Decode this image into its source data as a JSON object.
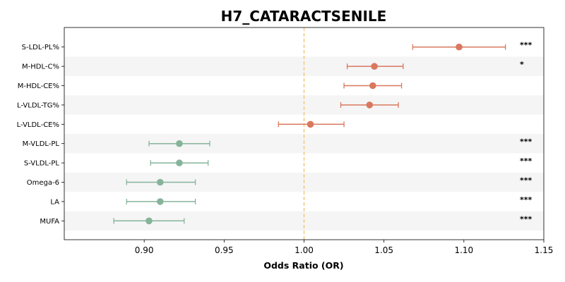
{
  "chart_data": {
    "type": "forest",
    "title": "H7_CATARACTSENILE",
    "xlabel": "Odds Ratio (OR)",
    "ylabel": "",
    "xlim": [
      0.85,
      1.15
    ],
    "xticks": [
      "0.90",
      "0.95",
      "1.00",
      "1.05",
      "1.10",
      "1.15"
    ],
    "reference_line": 1.0,
    "grid": false,
    "row_shading": "alternating",
    "colors": {
      "increased": "#D9785E",
      "decreased": "#86B49A",
      "reference": "#F5C77E",
      "shade": "#F5F5F5"
    },
    "rows": [
      {
        "label": "S-LDL-PL%",
        "or": 1.097,
        "ci_low": 1.068,
        "ci_high": 1.126,
        "sig": "***",
        "direction": "increased"
      },
      {
        "label": "M-HDL-C%",
        "or": 1.044,
        "ci_low": 1.027,
        "ci_high": 1.062,
        "sig": "*",
        "direction": "increased"
      },
      {
        "label": "M-HDL-CE%",
        "or": 1.043,
        "ci_low": 1.025,
        "ci_high": 1.061,
        "sig": "",
        "direction": "increased"
      },
      {
        "label": "L-VLDL-TG%",
        "or": 1.041,
        "ci_low": 1.023,
        "ci_high": 1.059,
        "sig": "",
        "direction": "increased"
      },
      {
        "label": "L-VLDL-CE%",
        "or": 1.004,
        "ci_low": 0.984,
        "ci_high": 1.025,
        "sig": "",
        "direction": "increased"
      },
      {
        "label": "M-VLDL-PL",
        "or": 0.922,
        "ci_low": 0.903,
        "ci_high": 0.941,
        "sig": "***",
        "direction": "decreased"
      },
      {
        "label": "S-VLDL-PL",
        "or": 0.922,
        "ci_low": 0.904,
        "ci_high": 0.94,
        "sig": "***",
        "direction": "decreased"
      },
      {
        "label": "Omega-6",
        "or": 0.91,
        "ci_low": 0.889,
        "ci_high": 0.932,
        "sig": "***",
        "direction": "decreased"
      },
      {
        "label": "LA",
        "or": 0.91,
        "ci_low": 0.889,
        "ci_high": 0.932,
        "sig": "***",
        "direction": "decreased"
      },
      {
        "label": "MUFA",
        "or": 0.903,
        "ci_low": 0.881,
        "ci_high": 0.925,
        "sig": "***",
        "direction": "decreased"
      }
    ]
  }
}
